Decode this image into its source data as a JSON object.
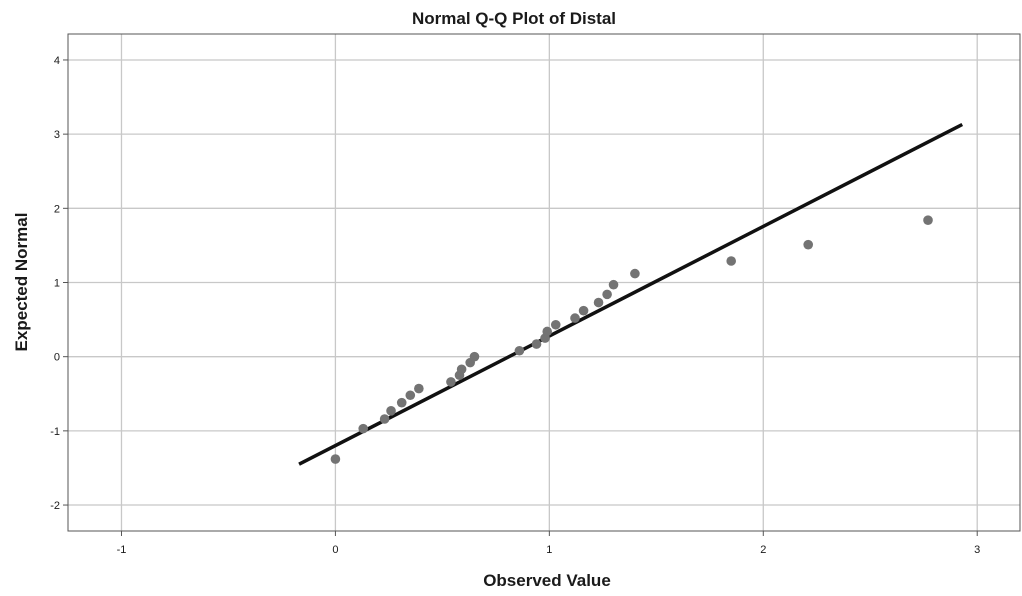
{
  "chart_data": {
    "type": "scatter",
    "title": "Normal Q-Q Plot of Distal",
    "xlabel": "Observed Value",
    "ylabel": "Expected Normal",
    "xlim": [
      -1.25,
      3.2
    ],
    "ylim": [
      -2.35,
      4.35
    ],
    "xticks": [
      -1,
      0,
      1,
      2,
      3
    ],
    "yticks": [
      -2,
      -1,
      0,
      1,
      2,
      3,
      4
    ],
    "xtick_labels": [
      "-1",
      "0",
      "1",
      "2",
      "3"
    ],
    "ytick_labels": [
      "-2",
      "-1",
      "0",
      "1",
      "2",
      "3",
      "4"
    ],
    "grid": true,
    "points": {
      "color": "#737373",
      "x": [
        0.0,
        0.13,
        0.23,
        0.26,
        0.31,
        0.35,
        0.39,
        0.54,
        0.58,
        0.59,
        0.63,
        0.65,
        0.86,
        0.94,
        0.98,
        0.99,
        1.03,
        1.12,
        1.16,
        1.23,
        1.27,
        1.3,
        1.4,
        1.85,
        2.21,
        2.77
      ],
      "y": [
        -1.38,
        -0.97,
        -0.84,
        -0.73,
        -0.62,
        -0.52,
        -0.43,
        -0.34,
        -0.25,
        -0.17,
        -0.08,
        0.0,
        0.08,
        0.17,
        0.25,
        0.34,
        0.43,
        0.52,
        0.62,
        0.73,
        0.84,
        0.97,
        1.12,
        1.29,
        1.51,
        1.84
      ]
    },
    "reference_line": {
      "color": "#111111",
      "x": [
        -0.17,
        2.93
      ],
      "y": [
        -1.45,
        3.13
      ]
    }
  }
}
